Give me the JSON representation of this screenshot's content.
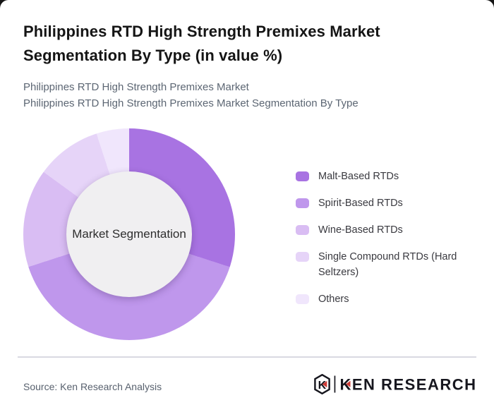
{
  "header": {
    "title_lines": [
      "Philippines RTD High Strength Premixes Market",
      "Segmentation By Type (in value %)"
    ],
    "subtitle_line1": "Philippines RTD High Strength Premixes Market",
    "subtitle_line2": "Philippines RTD High Strength Premixes Market Segmentation By Type"
  },
  "chart_data": {
    "type": "pie",
    "style": "donut",
    "title": "Philippines RTD High Strength Premixes Market Segmentation By Type (in value %)",
    "center_label": "Market Segmentation",
    "unit": "% of market value",
    "start_angle_deg": 0,
    "direction": "clockwise",
    "legend_position": "right",
    "categories": [
      "Malt-Based RTDs",
      "Spirit-Based RTDs",
      "Wine-Based RTDs",
      "Single Compound RTDs (Hard Seltzers)",
      "Others"
    ],
    "values": [
      30,
      40,
      15,
      10,
      5
    ],
    "colors": [
      "#a873e2",
      "#bf97ec",
      "#d9bdf3",
      "#e6d4f8",
      "#f0e6fc"
    ],
    "hole_color": "#f0eff1"
  },
  "footer": {
    "source": "Source: Ken Research Analysis",
    "logo": {
      "emblem_letter": "K",
      "wordmark": "KEN RESEARCH",
      "accent_color": "#cd3a35",
      "text_color": "#16161e"
    }
  }
}
